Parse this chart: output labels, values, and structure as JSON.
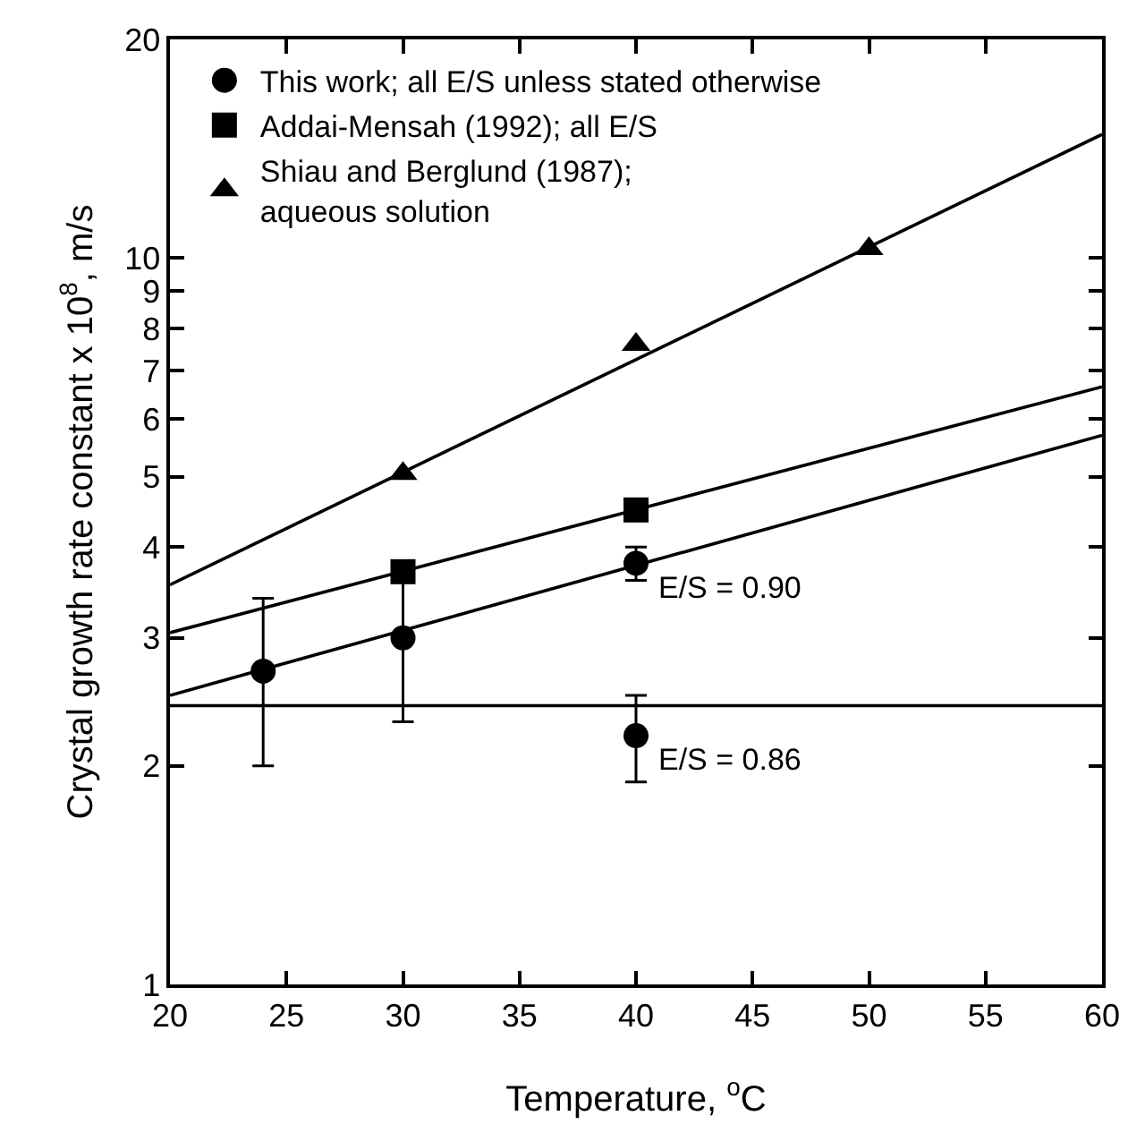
{
  "chart_data": {
    "type": "scatter",
    "xlabel": "Temperature, $^{o}$C",
    "ylabel": "Crystal growth rate constant x 10$^{8}$, m/s",
    "log": "y",
    "xlim": [
      20,
      60
    ],
    "xticks": [
      20,
      25,
      30,
      35,
      40,
      45,
      50,
      55,
      60
    ],
    "ylim": [
      1,
      20
    ],
    "yticks": [
      1,
      2,
      3,
      4,
      5,
      6,
      7,
      8,
      9,
      10,
      20
    ],
    "legend": "top left",
    "series": [
      {
        "name": "This work; all E/S unless stated otherwise",
        "color": "#000000",
        "marker": "circle",
        "x": [
          24,
          30,
          40,
          40
        ],
        "values": [
          2.7,
          3.0,
          3.8,
          2.2
        ],
        "errors": [
          [
            2.0,
            3.4
          ],
          [
            2.3,
            3.6
          ],
          [
            3.6,
            4.0
          ],
          [
            1.9,
            2.5
          ]
        ]
      },
      {
        "name": "Addai-Mensah (1992); all E/S",
        "color": "#000000",
        "marker": "square",
        "x": [
          30,
          40
        ],
        "values": [
          3.7,
          4.5
        ]
      },
      {
        "name": "Shiau and Berglund (1987);\naqueous solution",
        "color": "#000000",
        "marker": "triangle",
        "x": [
          30,
          40,
          50
        ],
        "values": [
          5.05,
          7.6,
          10.3
        ]
      },
      {
        "type": "line",
        "color": "#000000",
        "x": [
          20,
          60
        ],
        "values": [
          3.55,
          14.8
        ]
      },
      {
        "type": "line",
        "color": "#000000",
        "x": [
          20,
          60
        ],
        "values": [
          3.05,
          6.65
        ]
      },
      {
        "type": "line",
        "color": "#000000",
        "x": [
          20,
          60
        ],
        "values": [
          2.5,
          5.7
        ]
      },
      {
        "type": "line",
        "color": "#000000",
        "x": [
          20,
          60
        ],
        "values": [
          2.42,
          2.42
        ]
      }
    ],
    "annotations": [
      {
        "text": "E/S = 0.90",
        "x": 40,
        "y": 3.8
      },
      {
        "text": "E/S = 0.86",
        "x": 40,
        "y": 2.2
      }
    ]
  }
}
